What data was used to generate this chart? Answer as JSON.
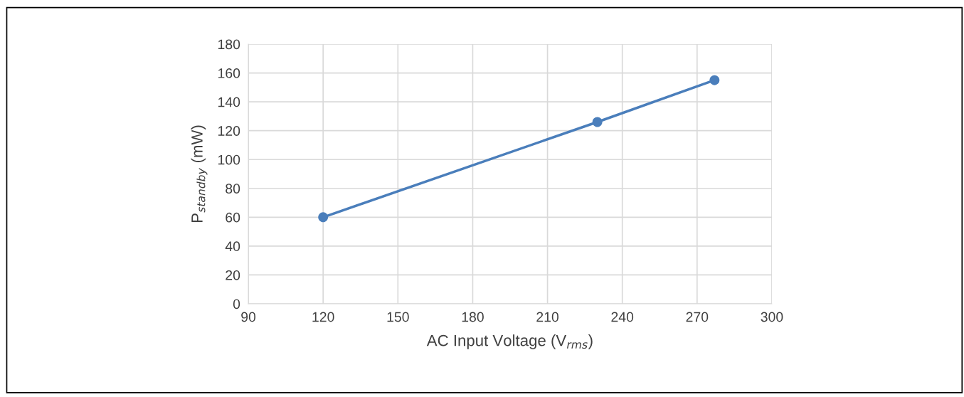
{
  "chart_data": {
    "type": "line",
    "xlabel": "AC Input Voltage (V$_{rms}$)",
    "ylabel": "P$_{standby}$ (mW)",
    "x": [
      120,
      230,
      277
    ],
    "series": [
      {
        "color": "#4a7ebb",
        "values": [
          60,
          126,
          155
        ]
      }
    ],
    "xlim": [
      90,
      300
    ],
    "xticks": [
      90,
      120,
      150,
      180,
      210,
      240,
      270,
      300
    ],
    "ylim": [
      0,
      180
    ],
    "yticks": [
      0,
      20,
      40,
      60,
      80,
      100,
      120,
      140,
      160,
      180
    ],
    "grid": true,
    "marker": "circle",
    "line_style": "solid"
  }
}
